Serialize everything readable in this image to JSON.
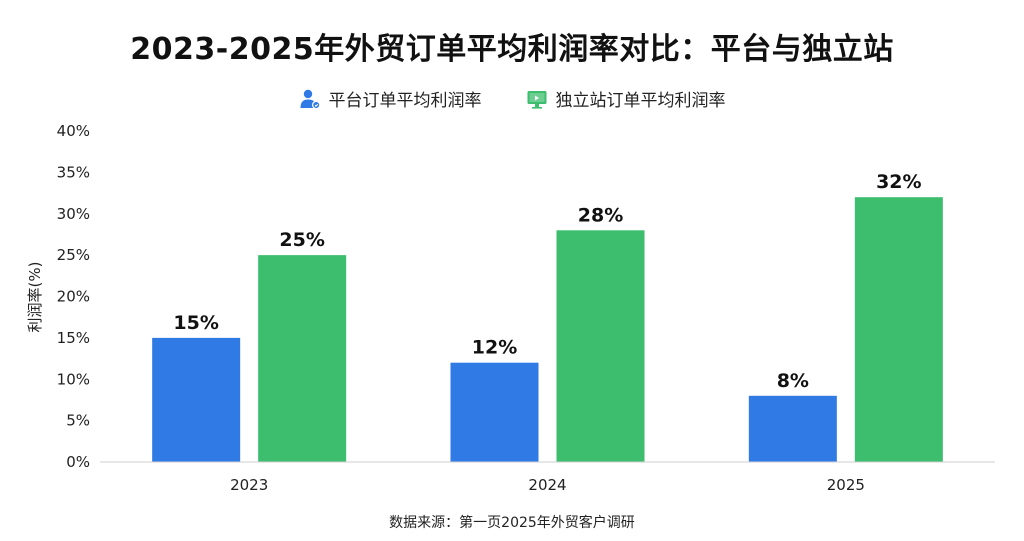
{
  "chart_data": {
    "type": "bar",
    "title": "2023-2025年外贸订单平均利润率对比：平台与独立站",
    "ylabel": "利润率(%)",
    "xlabel": "",
    "categories": [
      "2023",
      "2024",
      "2025"
    ],
    "ylim": [
      0,
      40
    ],
    "yticks": [
      0,
      5,
      10,
      15,
      20,
      25,
      30,
      35,
      40
    ],
    "ytick_suffix": "%",
    "grid": false,
    "legend_position": "top-center",
    "series": [
      {
        "name": "平台订单平均利润率",
        "values": [
          15,
          12,
          8
        ],
        "labels": [
          "15%",
          "12%",
          "8%"
        ],
        "color": "#2F7AE5",
        "icon": "user-icon"
      },
      {
        "name": "独立站订单平均利润率",
        "values": [
          25,
          28,
          32
        ],
        "labels": [
          "25%",
          "28%",
          "32%"
        ],
        "color": "#3DBE6E",
        "icon": "monitor-icon"
      }
    ],
    "source": "数据来源：第一页2025年外贸客户调研"
  }
}
